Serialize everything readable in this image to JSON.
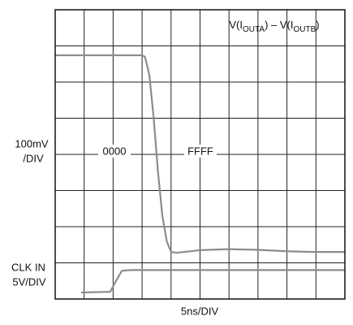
{
  "chart_data": {
    "type": "line",
    "title_parts": [
      "V(I",
      "OUTA",
      ") – V(I",
      "OUTB",
      ")"
    ],
    "x_label": "5ns/DIV",
    "y_labels": [
      [
        "100mV",
        "/DIV"
      ],
      [
        "CLK IN",
        "5V/DIV"
      ]
    ],
    "annotations": [
      "0000",
      "FFFF"
    ],
    "xlim": [
      0,
      10
    ],
    "ylim": [
      0,
      8
    ],
    "grid": true,
    "series": [
      {
        "color": "#8c8c8c",
        "x": [
          0,
          3.0,
          3.1,
          3.25,
          3.4,
          3.55,
          3.7,
          3.85,
          4.0,
          4.2,
          5,
          6,
          7,
          8,
          9,
          10
        ],
        "values": [
          6.74,
          6.74,
          6.7,
          6.2,
          5.0,
          3.5,
          2.3,
          1.6,
          1.3,
          1.28,
          1.35,
          1.38,
          1.36,
          1.32,
          1.3,
          1.3
        ]
      },
      {
        "color": "#8c8c8c",
        "x": [
          0.9,
          1.9,
          2.1,
          2.3,
          2.6,
          10
        ],
        "values": [
          0.18,
          0.2,
          0.5,
          0.78,
          0.8,
          0.8
        ]
      }
    ]
  }
}
